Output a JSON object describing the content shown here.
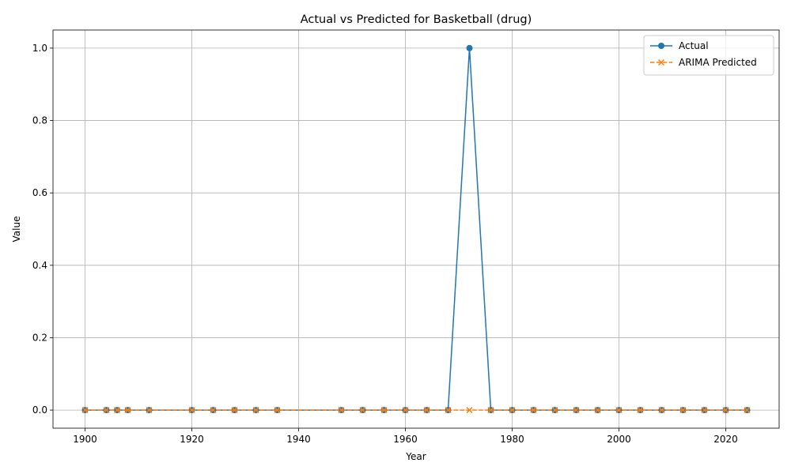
{
  "chart_data": {
    "type": "line",
    "title": "Actual vs Predicted for Basketball (drug)",
    "xlabel": "Year",
    "ylabel": "Value",
    "xlim": [
      1894,
      2030
    ],
    "ylim": [
      -0.05,
      1.05
    ],
    "xticks": [
      1900,
      1920,
      1940,
      1960,
      1980,
      2000,
      2020
    ],
    "yticks": [
      0.0,
      0.2,
      0.4,
      0.6,
      0.8,
      1.0
    ],
    "xtick_labels": [
      "1900",
      "1920",
      "1940",
      "1960",
      "1980",
      "2000",
      "2020"
    ],
    "ytick_labels": [
      "0.0",
      "0.2",
      "0.4",
      "0.6",
      "0.8",
      "1.0"
    ],
    "grid": true,
    "legend_position": "top-right",
    "x": [
      1900,
      1904,
      1906,
      1908,
      1912,
      1920,
      1924,
      1928,
      1932,
      1936,
      1948,
      1952,
      1956,
      1960,
      1964,
      1968,
      1972,
      1976,
      1980,
      1984,
      1988,
      1992,
      1996,
      2000,
      2004,
      2008,
      2012,
      2016,
      2020,
      2024
    ],
    "series": [
      {
        "name": "Actual",
        "color": "#1f77b4",
        "marker": "circle",
        "linestyle": "solid",
        "values": [
          0,
          0,
          0,
          0,
          0,
          0,
          0,
          0,
          0,
          0,
          0,
          0,
          0,
          0,
          0,
          0,
          1,
          0,
          0,
          0,
          0,
          0,
          0,
          0,
          0,
          0,
          0,
          0,
          0,
          0
        ]
      },
      {
        "name": "ARIMA Predicted",
        "color": "#ff7f0e",
        "marker": "x",
        "linestyle": "dashed",
        "values": [
          0,
          0,
          0,
          0,
          0,
          0,
          0,
          0,
          0,
          0,
          0,
          0,
          0,
          0,
          0,
          0,
          0,
          0,
          0,
          0,
          0,
          0,
          0,
          0,
          0,
          0,
          0,
          0,
          0,
          0
        ]
      }
    ]
  }
}
